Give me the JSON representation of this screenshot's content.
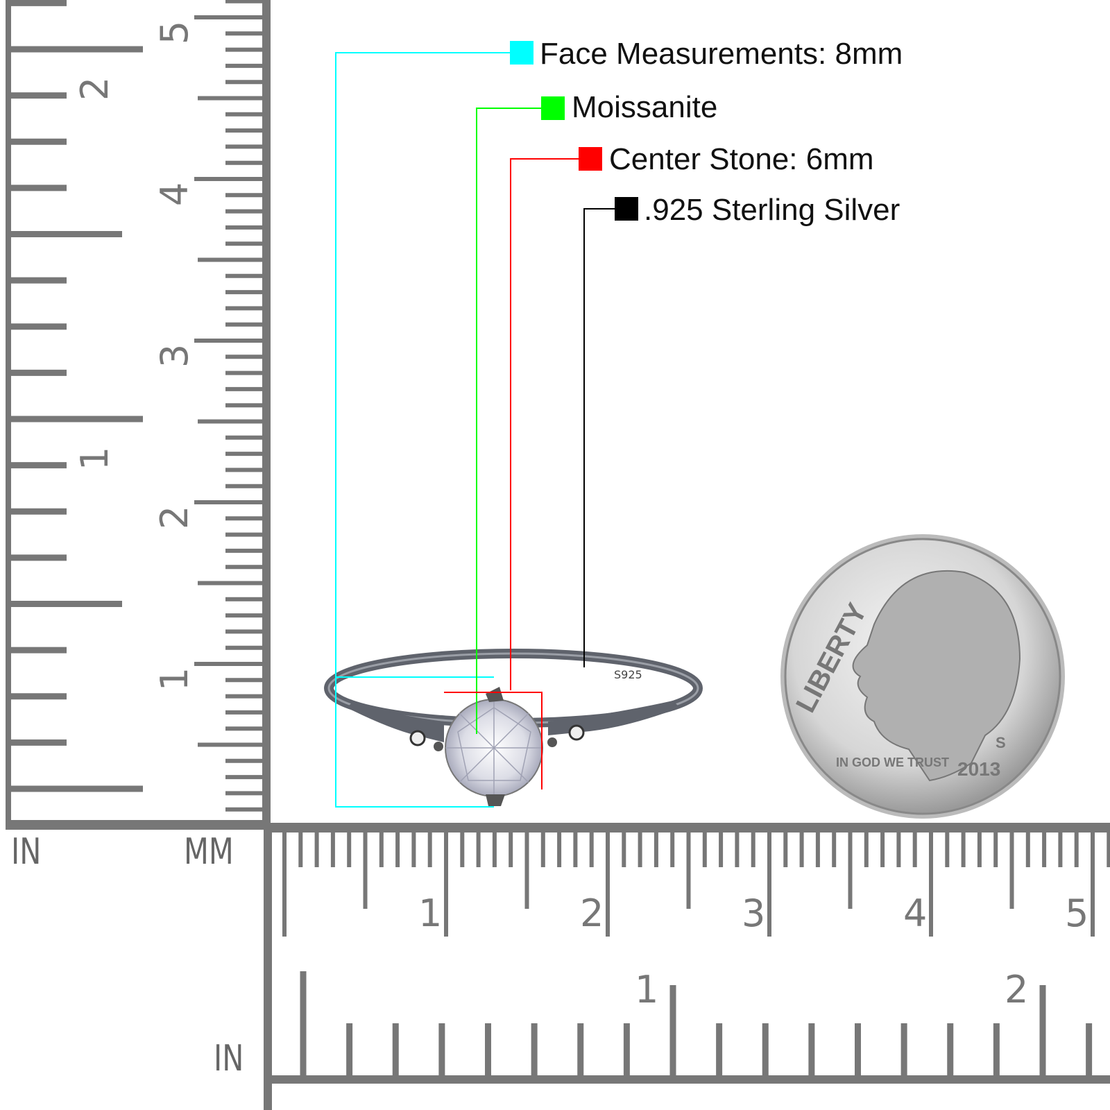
{
  "legend": [
    {
      "label": "Face Measurements: 8mm",
      "color": "#00ffff"
    },
    {
      "label": "Moissanite",
      "color": "#00ff00"
    },
    {
      "label": "Center Stone: 6mm",
      "color": "#ff0000"
    },
    {
      "label": ".925 Sterling Silver",
      "color": "#000000"
    }
  ],
  "rulers": {
    "vertical_in_label": "IN",
    "vertical_mm_label": "MM",
    "horizontal_in_label": "IN",
    "mm_numbers": [
      "1",
      "2",
      "3",
      "4",
      "5"
    ],
    "in_numbers": [
      "1",
      "2"
    ],
    "tick_color": "#777777"
  },
  "ring": {
    "stamp": "S925",
    "metal_color": "#6b6f78"
  },
  "coin": {
    "motto_top": "LIBERTY",
    "motto_left": "IN GOD WE TRUST",
    "year": "2013",
    "mint_mark": "S"
  }
}
